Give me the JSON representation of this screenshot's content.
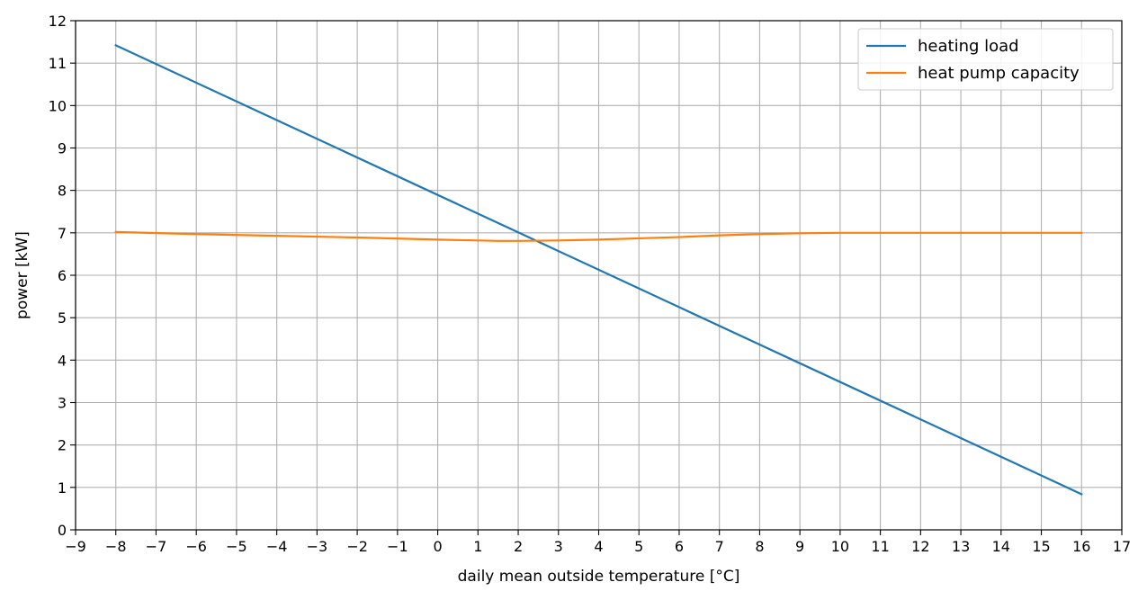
{
  "chart_data": {
    "type": "line",
    "title": "",
    "xlabel": "daily mean outside temperature [°C]",
    "ylabel": "power [kW]",
    "xlim": [
      -9,
      17
    ],
    "ylim": [
      0,
      12
    ],
    "xticks": [
      -9,
      -8,
      -7,
      -6,
      -5,
      -4,
      -3,
      -2,
      -1,
      0,
      1,
      2,
      3,
      4,
      5,
      6,
      7,
      8,
      9,
      10,
      11,
      12,
      13,
      14,
      15,
      16,
      17
    ],
    "xtick_labels": [
      "−9",
      "−8",
      "−7",
      "−6",
      "−5",
      "−4",
      "−3",
      "−2",
      "−1",
      "0",
      "1",
      "2",
      "3",
      "4",
      "5",
      "6",
      "7",
      "8",
      "9",
      "10",
      "11",
      "12",
      "13",
      "14",
      "15",
      "16",
      "17"
    ],
    "yticks": [
      0,
      1,
      2,
      3,
      4,
      5,
      6,
      7,
      8,
      9,
      10,
      11,
      12
    ],
    "ytick_labels": [
      "0",
      "1",
      "2",
      "3",
      "4",
      "5",
      "6",
      "7",
      "8",
      "9",
      "10",
      "11",
      "12"
    ],
    "grid": true,
    "legend_position": "top-right",
    "series": [
      {
        "name": "heating load",
        "color": "#1f77b4",
        "x": [
          -8,
          16
        ],
        "y": [
          11.42,
          0.84
        ]
      },
      {
        "name": "heat pump capacity",
        "color": "#ff7f0e",
        "x": [
          -8,
          -6,
          -4,
          -2,
          0,
          1,
          1.5,
          2,
          3,
          4,
          5,
          6,
          7,
          8,
          9,
          10,
          12,
          14,
          16
        ],
        "y": [
          7.02,
          6.97,
          6.93,
          6.89,
          6.84,
          6.82,
          6.81,
          6.81,
          6.82,
          6.84,
          6.87,
          6.9,
          6.94,
          6.97,
          6.99,
          7.0,
          7.0,
          7.0,
          7.0
        ]
      }
    ]
  }
}
